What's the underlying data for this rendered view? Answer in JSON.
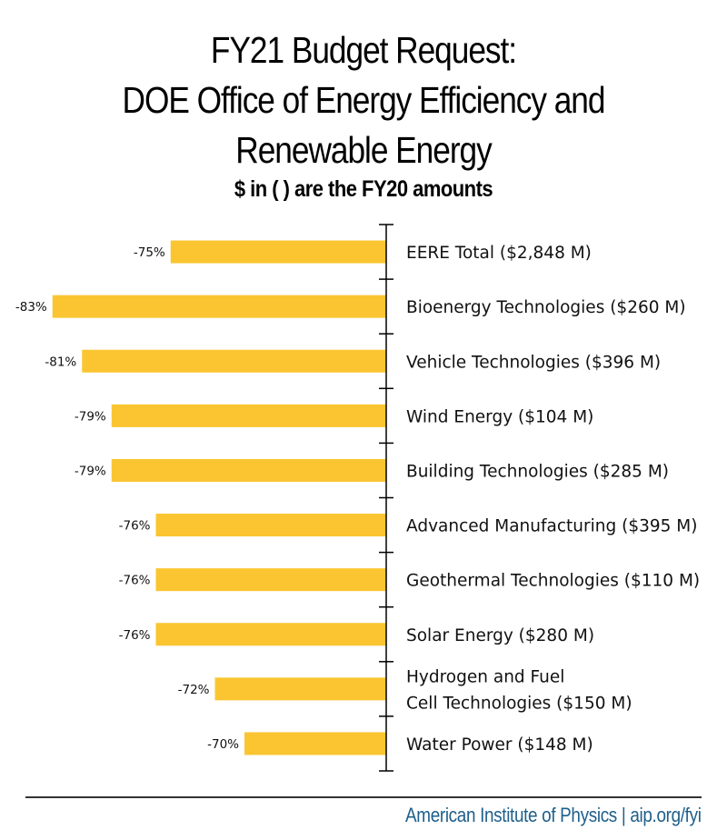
{
  "title": {
    "line1": "FY21 Budget Request:",
    "line2": "DOE Office of Energy Efficiency and",
    "line3": "Renewable Energy",
    "subtitle": "$ in ( ) are the FY20 amounts"
  },
  "colors": {
    "bar": "#fbc531",
    "axis": "#000000",
    "footer_text": "#1f5f8b"
  },
  "chart_data": {
    "type": "bar",
    "orientation": "horizontal",
    "title": "FY21 Budget Request: DOE Office of Energy Efficiency and Renewable Energy",
    "subtitle": "$ in ( ) are the FY20 amounts",
    "xlabel": "",
    "ylabel": "",
    "axis_min_percent": -60.4,
    "axis_max_percent": 0,
    "grid": false,
    "legend": "none",
    "categories": [
      [
        "EERE Total ($2,848 M)"
      ],
      [
        "Bioenergy Technologies ($260 M)"
      ],
      [
        "Vehicle Technologies ($396 M)"
      ],
      [
        "Wind Energy ($104 M)"
      ],
      [
        "Building Technologies ($285 M)"
      ],
      [
        "Advanced Manufacturing ($395 M)"
      ],
      [
        "Geothermal Technologies ($110 M)"
      ],
      [
        "Solar Energy ($280 M)"
      ],
      [
        "Hydrogen and Fuel",
        " Cell Technologies ($150 M)"
      ],
      [
        "Water Power ($148 M)"
      ]
    ],
    "values": [
      -75,
      -83,
      -81,
      -79,
      -79,
      -76,
      -76,
      -76,
      -72,
      -70
    ],
    "data_labels": [
      "-75%",
      "-83%",
      "-81%",
      "-79%",
      "-79%",
      "-76%",
      "-76%",
      "-76%",
      "-72%",
      "-70%"
    ],
    "fy20_amounts_millions": [
      2848,
      260,
      396,
      104,
      285,
      395,
      110,
      280,
      150,
      148
    ]
  },
  "footer": {
    "text": "American Institute of Physics | aip.org/fyi"
  }
}
